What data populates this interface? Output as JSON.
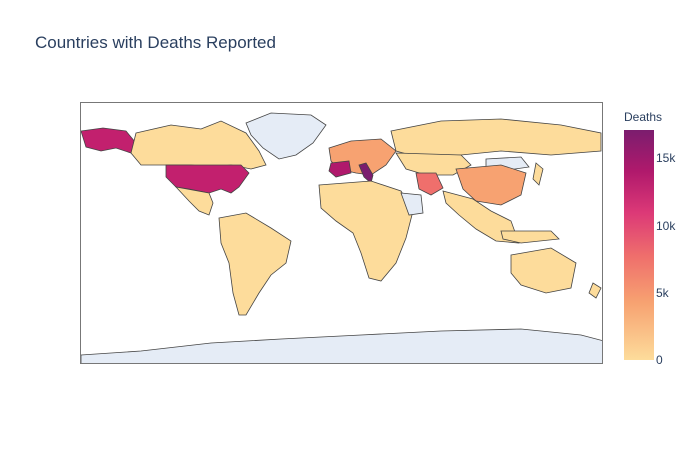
{
  "title": "Countries with Deaths Reported",
  "colorbar": {
    "title": "Deaths",
    "ticks": [
      "15k",
      "10k",
      "5k",
      "0"
    ]
  },
  "colors": {
    "no_data": "#e5ecf6",
    "low": "#fddc9b",
    "mid": "#f7a271",
    "high": "#dc3977",
    "top": "#7b1d6e",
    "border": "#444444"
  }
}
